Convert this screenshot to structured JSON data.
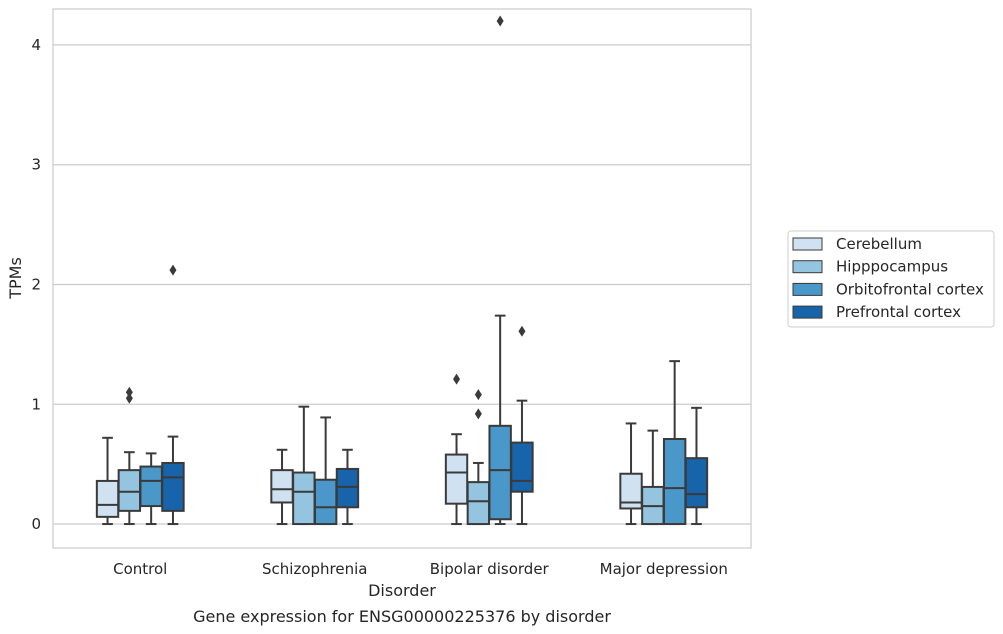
{
  "caption": "Gene expression for ENSG00000225376 by disorder",
  "chart_data": {
    "type": "boxplot",
    "xlabel": "Disorder",
    "ylabel": "TPMs",
    "ylim": [
      -0.2,
      4.3
    ],
    "yticks": [
      "0",
      "1",
      "2",
      "3",
      "4"
    ],
    "grid": "horizontal",
    "legend_position": "right, outside plot",
    "categories": [
      "Control",
      "Schizophrenia",
      "Bipolar disorder",
      "Major depression"
    ],
    "series": [
      {
        "name": "Cerebellum",
        "color": "#d0e1f2",
        "boxes": [
          {
            "whislo": 0.0,
            "q1": 0.06,
            "med": 0.16,
            "q3": 0.36,
            "whishi": 0.72,
            "fliers": []
          },
          {
            "whislo": 0.0,
            "q1": 0.18,
            "med": 0.29,
            "q3": 0.45,
            "whishi": 0.62,
            "fliers": []
          },
          {
            "whislo": 0.0,
            "q1": 0.17,
            "med": 0.43,
            "q3": 0.58,
            "whishi": 0.75,
            "fliers": [
              1.21
            ]
          },
          {
            "whislo": 0.0,
            "q1": 0.13,
            "med": 0.18,
            "q3": 0.42,
            "whishi": 0.84,
            "fliers": []
          }
        ]
      },
      {
        "name": "Hipppocampus",
        "color": "#94c4df",
        "boxes": [
          {
            "whislo": 0.0,
            "q1": 0.11,
            "med": 0.27,
            "q3": 0.45,
            "whishi": 0.6,
            "fliers": [
              1.05,
              1.1
            ]
          },
          {
            "whislo": 0.0,
            "q1": 0.0,
            "med": 0.27,
            "q3": 0.43,
            "whishi": 0.98,
            "fliers": []
          },
          {
            "whislo": 0.0,
            "q1": 0.0,
            "med": 0.19,
            "q3": 0.35,
            "whishi": 0.51,
            "fliers": [
              0.92,
              1.08
            ]
          },
          {
            "whislo": 0.0,
            "q1": 0.0,
            "med": 0.15,
            "q3": 0.31,
            "whishi": 0.78,
            "fliers": []
          }
        ]
      },
      {
        "name": "Orbitofrontal cortex",
        "color": "#4a98c9",
        "boxes": [
          {
            "whislo": 0.0,
            "q1": 0.15,
            "med": 0.36,
            "q3": 0.48,
            "whishi": 0.59,
            "fliers": []
          },
          {
            "whislo": 0.0,
            "q1": 0.0,
            "med": 0.14,
            "q3": 0.37,
            "whishi": 0.89,
            "fliers": []
          },
          {
            "whislo": 0.0,
            "q1": 0.04,
            "med": 0.45,
            "q3": 0.82,
            "whishi": 1.74,
            "fliers": [
              4.2
            ]
          },
          {
            "whislo": 0.0,
            "q1": 0.0,
            "med": 0.3,
            "q3": 0.71,
            "whishi": 1.36,
            "fliers": []
          }
        ]
      },
      {
        "name": "Prefrontal cortex",
        "color": "#1764ab",
        "boxes": [
          {
            "whislo": 0.0,
            "q1": 0.11,
            "med": 0.39,
            "q3": 0.51,
            "whishi": 0.73,
            "fliers": [
              2.12
            ]
          },
          {
            "whislo": 0.0,
            "q1": 0.14,
            "med": 0.31,
            "q3": 0.46,
            "whishi": 0.62,
            "fliers": []
          },
          {
            "whislo": 0.0,
            "q1": 0.27,
            "med": 0.36,
            "q3": 0.68,
            "whishi": 1.03,
            "fliers": [
              1.61
            ]
          },
          {
            "whislo": 0.0,
            "q1": 0.14,
            "med": 0.25,
            "q3": 0.55,
            "whishi": 0.97,
            "fliers": []
          }
        ]
      }
    ]
  }
}
